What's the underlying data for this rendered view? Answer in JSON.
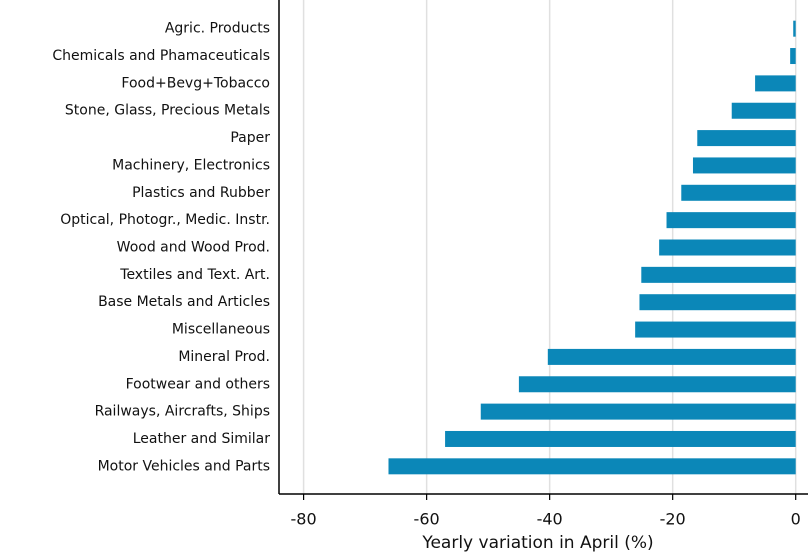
{
  "chart_data": {
    "type": "bar",
    "orientation": "horizontal",
    "x_label": "Yearly variation in April (%)",
    "categories": [
      "Agric. Products",
      "Chemicals and Phamaceuticals",
      "Food+Bevg+Tobacco",
      "Stone, Glass, Precious Metals",
      "Paper",
      "Machinery, Electronics",
      "Plastics and Rubber",
      "Optical, Photogr., Medic. Instr.",
      "Wood and Wood Prod.",
      "Textiles and Text. Art.",
      "Base Metals and Articles",
      "Miscellaneous",
      "Mineral Prod.",
      "Footwear and others",
      "Railways, Aircrafts, Ships",
      "Leather and Similar",
      "Motor Vehicles and Parts"
    ],
    "values": [
      -0.4,
      -0.9,
      -6.6,
      -10.4,
      -16,
      -16.7,
      -18.6,
      -21,
      -22.2,
      -25.1,
      -25.4,
      -26.1,
      -40.3,
      -45,
      -51.2,
      -57,
      -66.2
    ],
    "color": "#0b87b8",
    "xlim": [
      -84,
      2
    ],
    "xticks": [
      -80,
      -60,
      -40,
      -20,
      0
    ],
    "grid": true
  }
}
